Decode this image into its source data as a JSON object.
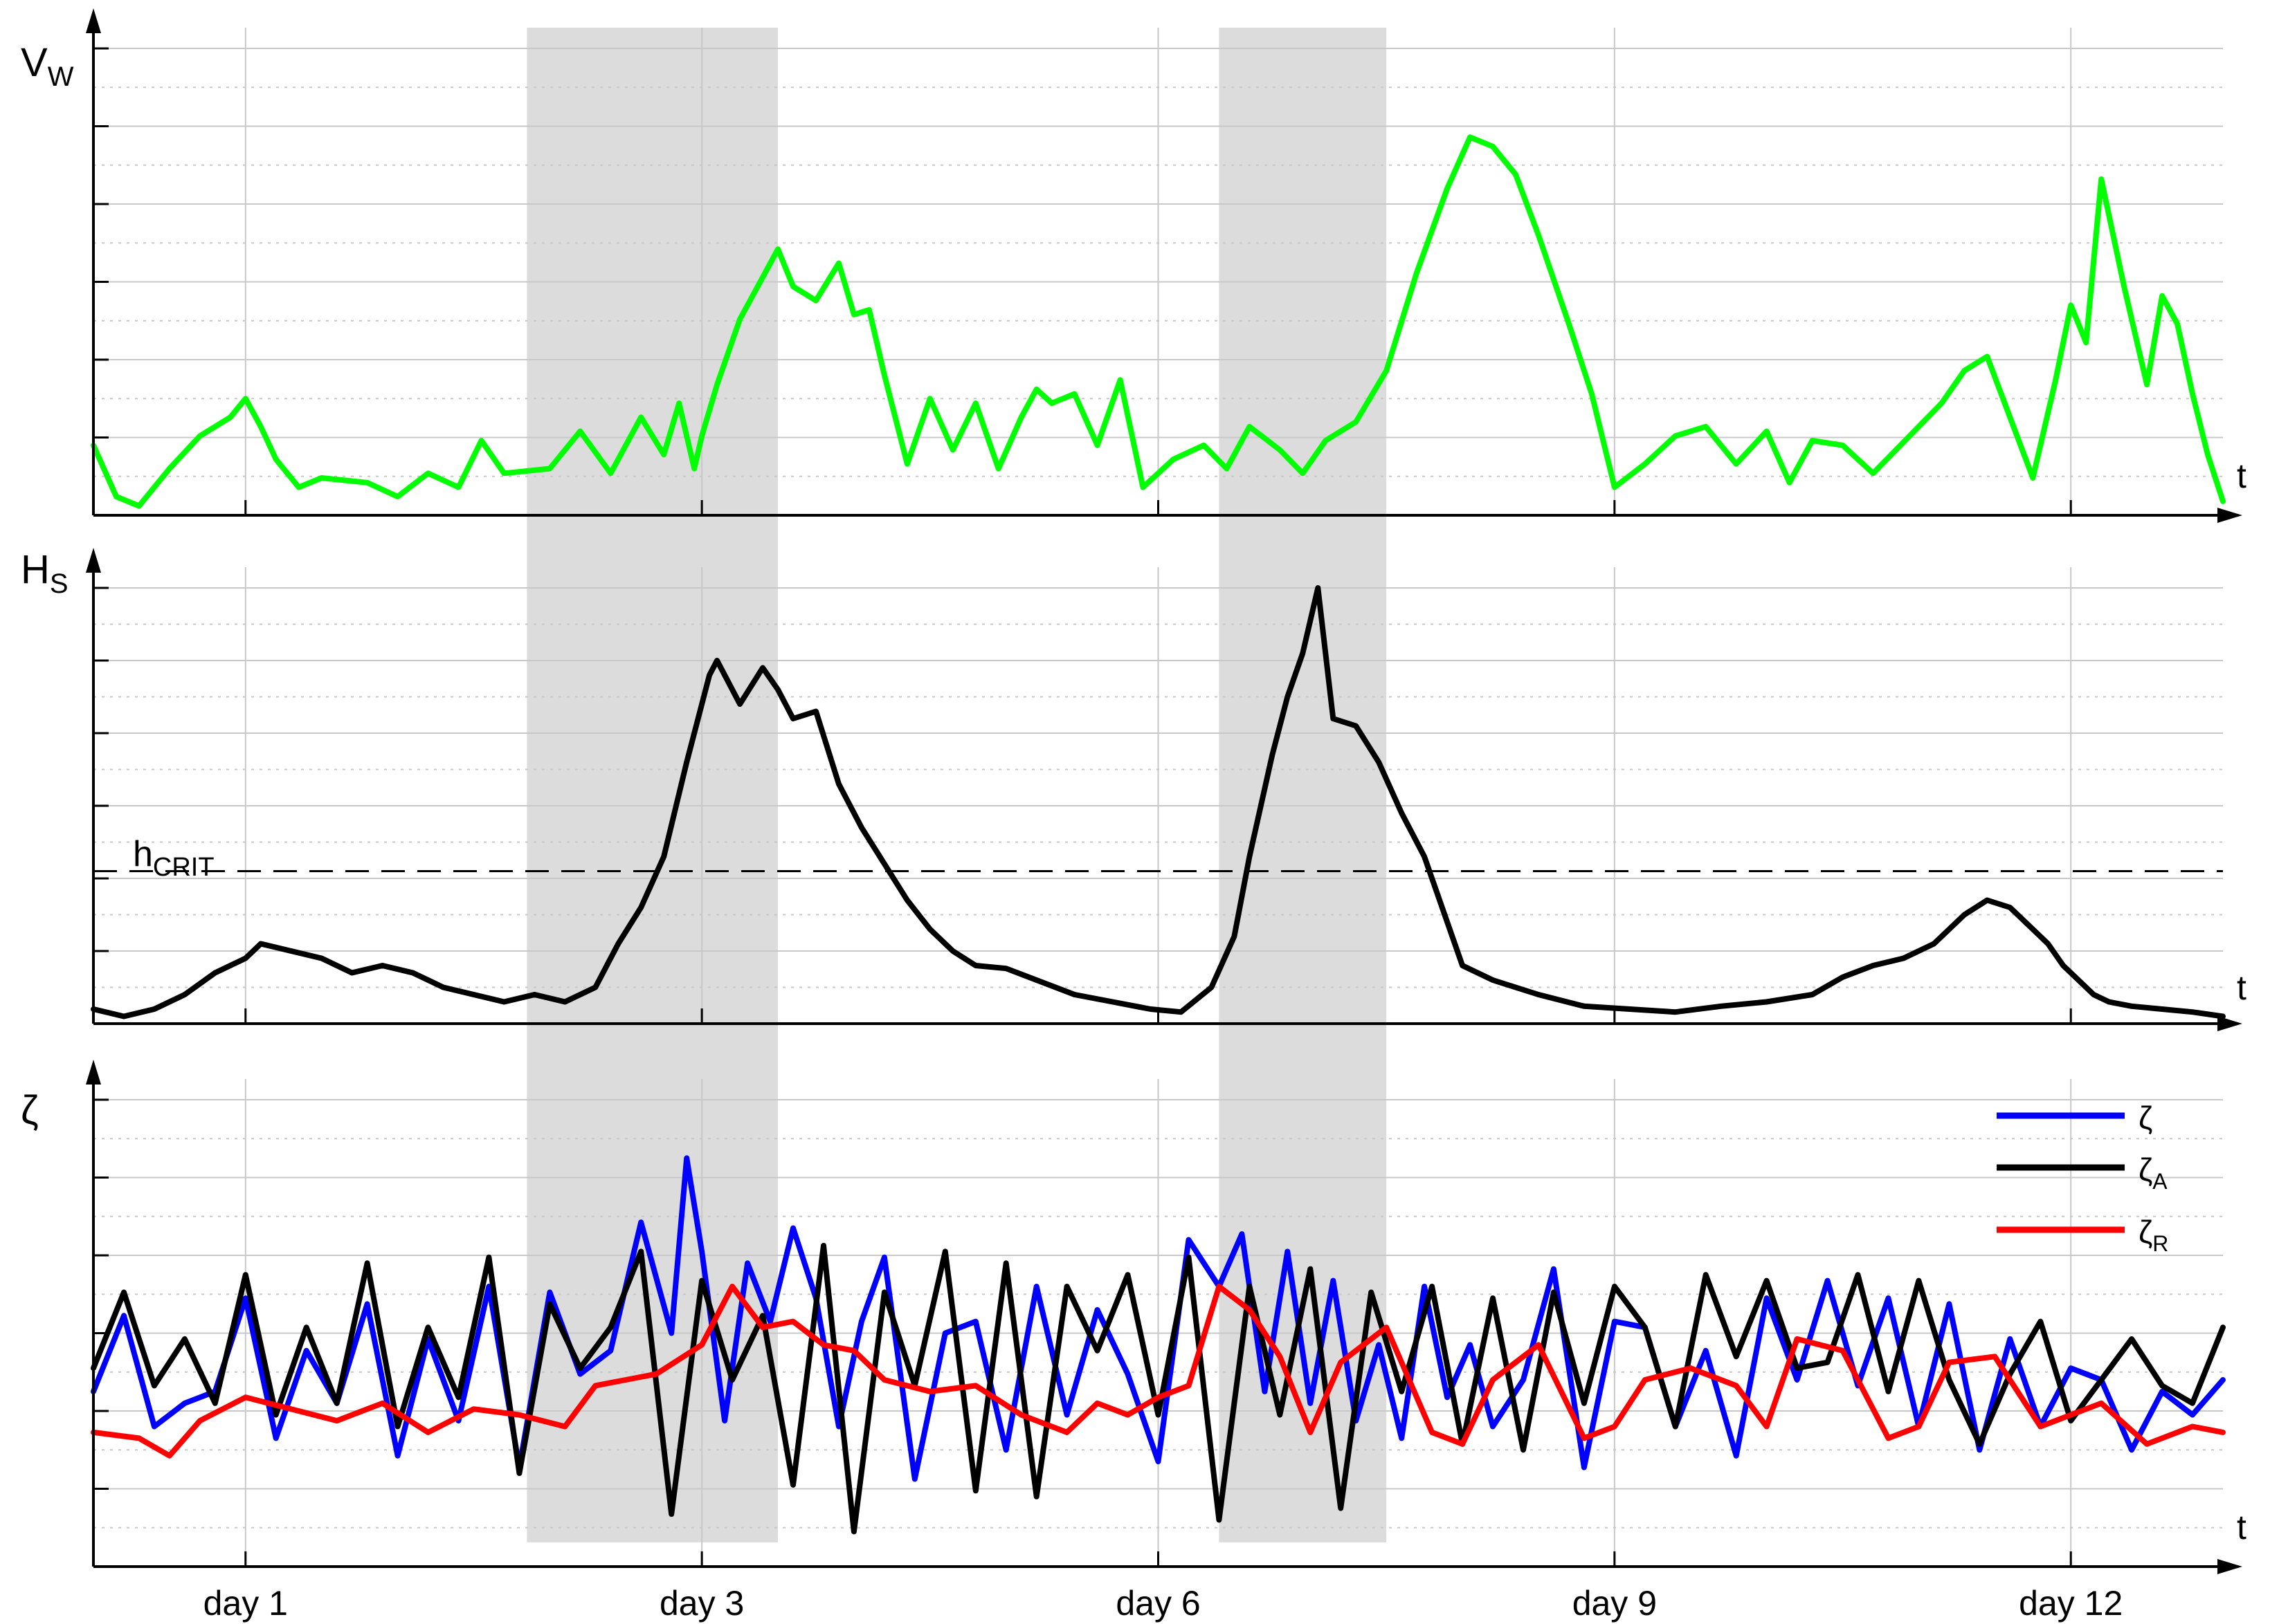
{
  "figure": {
    "x_axis_letter": "t",
    "day_ticks": [
      "day 1",
      "day 3",
      "day 6",
      "day 9",
      "day 12"
    ],
    "storm_windows": [
      [
        2.85,
        4.5
      ],
      [
        7.4,
        8.5
      ]
    ],
    "panels": [
      {
        "ylabel": "V",
        "ylabel_sub": "W"
      },
      {
        "ylabel": "H",
        "ylabel_sub": "S",
        "threshold_label": "h",
        "threshold_sub": "CRIT"
      },
      {
        "ylabel": "ζ",
        "ylabel_sub": ""
      }
    ],
    "legend": [
      {
        "name": "ζ",
        "sub": "",
        "color": "#0000ff"
      },
      {
        "name": "ζ",
        "sub": "A",
        "color": "#000000"
      },
      {
        "name": "ζ",
        "sub": "R",
        "color": "#ff0000"
      }
    ],
    "colors": {
      "wind": "#00ff00",
      "wave": "#000000",
      "shade": "#dcdcdc",
      "grid": "#c8c8c8"
    }
  },
  "chart_data": [
    {
      "type": "line",
      "ylabel": "V_W",
      "xlim": [
        0,
        14
      ],
      "ylim": [
        0,
        5
      ],
      "x_ticks": [
        1,
        4,
        7,
        10,
        13
      ],
      "x_tick_labels": [
        "day 1",
        "day 3",
        "day 6",
        "day 9",
        "day 12"
      ],
      "series": [
        {
          "x": [
            0,
            0.15,
            0.3,
            0.5,
            0.7,
            0.9,
            1.0,
            1.1,
            1.2,
            1.35,
            1.5,
            1.8,
            2.0,
            2.2,
            2.4,
            2.55,
            2.7,
            3.0,
            3.2,
            3.4,
            3.6,
            3.75,
            3.85,
            3.95,
            4.0,
            4.1,
            4.25,
            4.4,
            4.5,
            4.6,
            4.75,
            4.9,
            5.0,
            5.1,
            5.2,
            5.35,
            5.5,
            5.65,
            5.8,
            5.95,
            6.1,
            6.2,
            6.3,
            6.45,
            6.6,
            6.75,
            6.9,
            7.1,
            7.3,
            7.45,
            7.6,
            7.8,
            7.95,
            8.1,
            8.3,
            8.5,
            8.7,
            8.9,
            9.05,
            9.2,
            9.35,
            9.5,
            9.7,
            9.85,
            10.0,
            10.2,
            10.4,
            10.6,
            10.8,
            11.0,
            11.15,
            11.3,
            11.5,
            11.7,
            11.85,
            12.0,
            12.15,
            12.3,
            12.45,
            12.6,
            12.75,
            12.9,
            13.0,
            13.1,
            13.2,
            13.35,
            13.5,
            13.6,
            13.7,
            13.8,
            13.9,
            14.0
          ],
          "y": [
            0.75,
            0.2,
            0.1,
            0.5,
            0.85,
            1.05,
            1.25,
            0.95,
            0.6,
            0.3,
            0.4,
            0.35,
            0.2,
            0.45,
            0.3,
            0.8,
            0.45,
            0.5,
            0.9,
            0.45,
            1.05,
            0.65,
            1.2,
            0.5,
            0.85,
            1.4,
            2.1,
            2.55,
            2.85,
            2.45,
            2.3,
            2.7,
            2.15,
            2.2,
            1.5,
            0.55,
            1.25,
            0.7,
            1.2,
            0.5,
            1.05,
            1.35,
            1.2,
            1.3,
            0.75,
            1.45,
            0.3,
            0.6,
            0.75,
            0.5,
            0.95,
            0.7,
            0.45,
            0.8,
            1.0,
            1.55,
            2.6,
            3.5,
            4.05,
            3.95,
            3.65,
            3.0,
            2.05,
            1.3,
            0.3,
            0.55,
            0.85,
            0.95,
            0.55,
            0.9,
            0.35,
            0.8,
            0.75,
            0.45,
            0.7,
            0.95,
            1.2,
            1.55,
            1.7,
            1.05,
            0.4,
            1.45,
            2.25,
            1.85,
            3.6,
            2.45,
            1.4,
            2.35,
            2.05,
            1.3,
            0.65,
            0.15
          ]
        }
      ]
    },
    {
      "type": "line",
      "ylabel": "H_S",
      "xlim": [
        0,
        14
      ],
      "ylim": [
        0,
        3
      ],
      "threshold": 1.05,
      "threshold_label": "h_CRIT",
      "series": [
        {
          "x": [
            0,
            0.2,
            0.4,
            0.6,
            0.8,
            1.0,
            1.1,
            1.3,
            1.5,
            1.7,
            1.9,
            2.1,
            2.3,
            2.5,
            2.7,
            2.9,
            3.1,
            3.3,
            3.45,
            3.6,
            3.75,
            3.9,
            3.95,
            4.05,
            4.1,
            4.25,
            4.4,
            4.5,
            4.6,
            4.75,
            4.9,
            5.05,
            5.2,
            5.35,
            5.5,
            5.65,
            5.8,
            6.0,
            6.2,
            6.45,
            6.7,
            6.95,
            7.15,
            7.35,
            7.5,
            7.6,
            7.75,
            7.85,
            7.95,
            8.05,
            8.15,
            8.3,
            8.45,
            8.6,
            8.75,
            8.9,
            9.0,
            9.2,
            9.5,
            9.8,
            10.1,
            10.4,
            10.7,
            11.0,
            11.3,
            11.5,
            11.7,
            11.9,
            12.1,
            12.3,
            12.45,
            12.6,
            12.75,
            12.85,
            12.95,
            13.05,
            13.15,
            13.25,
            13.4,
            13.6,
            13.8,
            14.0
          ],
          "y": [
            0.1,
            0.05,
            0.1,
            0.2,
            0.35,
            0.45,
            0.55,
            0.5,
            0.45,
            0.35,
            0.4,
            0.35,
            0.25,
            0.2,
            0.15,
            0.2,
            0.15,
            0.25,
            0.55,
            0.8,
            1.15,
            1.8,
            2.0,
            2.4,
            2.5,
            2.2,
            2.45,
            2.3,
            2.1,
            2.15,
            1.65,
            1.35,
            1.1,
            0.85,
            0.65,
            0.5,
            0.4,
            0.38,
            0.3,
            0.2,
            0.15,
            0.1,
            0.08,
            0.25,
            0.6,
            1.15,
            1.85,
            2.25,
            2.55,
            3.0,
            2.1,
            2.05,
            1.8,
            1.45,
            1.15,
            0.7,
            0.4,
            0.3,
            0.2,
            0.12,
            0.1,
            0.08,
            0.12,
            0.15,
            0.2,
            0.32,
            0.4,
            0.45,
            0.55,
            0.75,
            0.85,
            0.8,
            0.65,
            0.55,
            0.4,
            0.3,
            0.2,
            0.15,
            0.12,
            0.1,
            0.08,
            0.05
          ]
        }
      ]
    },
    {
      "type": "line",
      "ylabel": "ζ",
      "xlim": [
        0,
        14
      ],
      "ylim": [
        -1.5,
        2.5
      ],
      "series": [
        {
          "name": "ζ",
          "x": [
            0,
            0.2,
            0.4,
            0.6,
            0.8,
            1.0,
            1.2,
            1.4,
            1.6,
            1.8,
            2.0,
            2.2,
            2.4,
            2.6,
            2.8,
            3.0,
            3.2,
            3.4,
            3.6,
            3.8,
            3.9,
            4.0,
            4.15,
            4.3,
            4.45,
            4.6,
            4.75,
            4.9,
            5.05,
            5.2,
            5.4,
            5.6,
            5.8,
            6.0,
            6.2,
            6.4,
            6.6,
            6.8,
            7.0,
            7.2,
            7.4,
            7.55,
            7.7,
            7.85,
            8.0,
            8.15,
            8.3,
            8.45,
            8.6,
            8.75,
            8.9,
            9.05,
            9.2,
            9.4,
            9.6,
            9.8,
            10.0,
            10.2,
            10.4,
            10.6,
            10.8,
            11.0,
            11.2,
            11.4,
            11.6,
            11.8,
            12.0,
            12.2,
            12.4,
            12.6,
            12.8,
            13.0,
            13.2,
            13.4,
            13.6,
            13.8,
            14.0
          ],
          "y": [
            0.0,
            0.65,
            -0.3,
            -0.1,
            0.0,
            0.8,
            -0.4,
            0.35,
            -0.1,
            0.75,
            -0.55,
            0.45,
            -0.25,
            0.9,
            -0.65,
            0.85,
            0.15,
            0.35,
            1.45,
            0.5,
            2.0,
            1.2,
            -0.25,
            1.1,
            0.6,
            1.4,
            0.8,
            -0.3,
            0.6,
            1.15,
            -0.75,
            0.5,
            0.6,
            -0.5,
            0.9,
            -0.2,
            0.7,
            0.15,
            -0.6,
            1.3,
            0.9,
            1.35,
            0.0,
            1.2,
            -0.1,
            0.95,
            -0.25,
            0.4,
            -0.4,
            0.9,
            -0.05,
            0.4,
            -0.3,
            0.1,
            1.05,
            -0.65,
            0.6,
            0.55,
            -0.3,
            0.35,
            -0.55,
            0.8,
            0.1,
            0.95,
            0.05,
            0.8,
            -0.3,
            0.75,
            -0.5,
            0.45,
            -0.3,
            0.2,
            0.1,
            -0.5,
            0.0,
            -0.2,
            0.1
          ]
        },
        {
          "name": "ζ_A",
          "x": [
            0,
            0.2,
            0.4,
            0.6,
            0.8,
            1.0,
            1.2,
            1.4,
            1.6,
            1.8,
            2.0,
            2.2,
            2.4,
            2.6,
            2.8,
            3.0,
            3.2,
            3.4,
            3.6,
            3.8,
            4.0,
            4.2,
            4.4,
            4.6,
            4.8,
            5.0,
            5.2,
            5.4,
            5.6,
            5.8,
            6.0,
            6.2,
            6.4,
            6.6,
            6.8,
            7.0,
            7.2,
            7.4,
            7.6,
            7.8,
            8.0,
            8.2,
            8.4,
            8.6,
            8.8,
            9.0,
            9.2,
            9.4,
            9.6,
            9.8,
            10.0,
            10.2,
            10.4,
            10.6,
            10.8,
            11.0,
            11.2,
            11.4,
            11.6,
            11.8,
            12.0,
            12.2,
            12.4,
            12.6,
            12.8,
            13.0,
            13.2,
            13.4,
            13.6,
            13.8,
            14.0
          ],
          "y": [
            0.2,
            0.85,
            0.05,
            0.45,
            -0.1,
            1.0,
            -0.2,
            0.55,
            -0.1,
            1.1,
            -0.3,
            0.55,
            -0.05,
            1.15,
            -0.7,
            0.75,
            0.2,
            0.55,
            1.2,
            -1.05,
            0.95,
            0.1,
            0.65,
            -0.8,
            1.25,
            -1.2,
            0.85,
            0.05,
            1.2,
            -0.85,
            1.1,
            -0.9,
            0.9,
            0.35,
            1.0,
            -0.2,
            1.15,
            -1.1,
            0.9,
            -0.2,
            1.05,
            -1.0,
            0.85,
            0.0,
            0.9,
            -0.45,
            0.8,
            -0.5,
            0.85,
            -0.1,
            0.9,
            0.55,
            -0.3,
            1.0,
            0.3,
            0.95,
            0.2,
            0.25,
            1.0,
            0.0,
            0.95,
            0.1,
            -0.45,
            0.15,
            0.6,
            -0.25,
            0.1,
            0.45,
            0.05,
            -0.1,
            0.55
          ]
        },
        {
          "name": "ζ_R",
          "x": [
            0,
            0.3,
            0.5,
            0.7,
            1.0,
            1.3,
            1.6,
            1.9,
            2.2,
            2.5,
            2.8,
            3.1,
            3.3,
            3.5,
            3.7,
            4.0,
            4.2,
            4.4,
            4.6,
            4.8,
            5.0,
            5.2,
            5.5,
            5.8,
            6.1,
            6.4,
            6.6,
            6.8,
            7.0,
            7.2,
            7.4,
            7.6,
            7.8,
            8.0,
            8.2,
            8.5,
            8.8,
            9.0,
            9.2,
            9.5,
            9.8,
            10.0,
            10.2,
            10.5,
            10.8,
            11.0,
            11.2,
            11.5,
            11.8,
            12.0,
            12.2,
            12.5,
            12.8,
            13.0,
            13.2,
            13.5,
            13.8,
            14.0
          ],
          "y": [
            -0.35,
            -0.4,
            -0.55,
            -0.25,
            -0.05,
            -0.15,
            -0.25,
            -0.1,
            -0.35,
            -0.15,
            -0.2,
            -0.3,
            0.05,
            0.1,
            0.15,
            0.4,
            0.9,
            0.55,
            0.6,
            0.4,
            0.35,
            0.1,
            0.0,
            0.05,
            -0.2,
            -0.35,
            -0.1,
            -0.2,
            -0.05,
            0.05,
            0.9,
            0.7,
            0.3,
            -0.35,
            0.25,
            0.55,
            -0.35,
            -0.45,
            0.1,
            0.4,
            -0.4,
            -0.3,
            0.1,
            0.2,
            0.05,
            -0.3,
            0.45,
            0.35,
            -0.4,
            -0.3,
            0.25,
            0.3,
            -0.3,
            -0.2,
            -0.1,
            -0.45,
            -0.3,
            -0.35
          ]
        }
      ]
    }
  ]
}
